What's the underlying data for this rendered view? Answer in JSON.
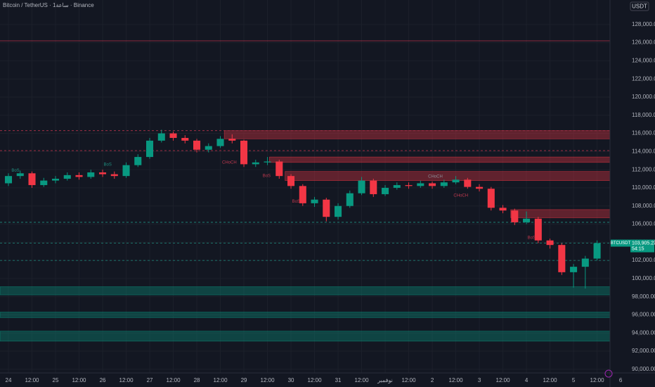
{
  "chart_data": {
    "type": "candlestick",
    "title": "Bitcoin / TetherUS · 1ساعة · Binance",
    "currency": "USDT",
    "symbol": "BTCUSDT",
    "last_price_label": "103,905.23",
    "countdown": "54:15",
    "up_color": "#089981",
    "down_color": "#f23645",
    "x": [
      0,
      6,
      12,
      18,
      24,
      30,
      36,
      42,
      48,
      54,
      60,
      66,
      72,
      78,
      84,
      90,
      96,
      102,
      108,
      114,
      120,
      126,
      132,
      138,
      144,
      150,
      156,
      162,
      168,
      174,
      180,
      186,
      192,
      198,
      204,
      210,
      216,
      222,
      228,
      234,
      240,
      246,
      252,
      258,
      264,
      270,
      276,
      282,
      288,
      294,
      300
    ],
    "open": [
      110500,
      111300,
      111600,
      110300,
      110800,
      111000,
      111400,
      111200,
      111700,
      111500,
      111300,
      112500,
      113400,
      115200,
      116000,
      115500,
      115200,
      114200,
      114600,
      115400,
      115200,
      112600,
      112800,
      112900,
      111300,
      110200,
      108300,
      108700,
      106800,
      108000,
      109400,
      110800,
      109300,
      110000,
      110300,
      110200,
      110500,
      110200,
      110600,
      110900,
      110100,
      109900,
      107800,
      107500,
      106200,
      106600,
      104200,
      103700,
      100700,
      101300,
      102200
    ],
    "high": [
      111600,
      111900,
      111800,
      111100,
      111300,
      111700,
      111700,
      112000,
      112000,
      111800,
      112800,
      113700,
      115500,
      116400,
      116200,
      115800,
      115400,
      114900,
      115700,
      115900,
      115300,
      113100,
      113400,
      113100,
      111500,
      110400,
      109000,
      108900,
      108300,
      109700,
      111200,
      111000,
      110300,
      110600,
      110600,
      110800,
      110700,
      110900,
      111300,
      111100,
      110400,
      110100,
      108100,
      107700,
      107400,
      106800,
      104400,
      103900,
      101600,
      102500,
      104200
    ],
    "low": [
      110200,
      111000,
      110000,
      110100,
      110500,
      110800,
      110900,
      111000,
      111200,
      111000,
      111100,
      112300,
      113200,
      115000,
      115200,
      114900,
      113900,
      113900,
      114400,
      114900,
      112300,
      112300,
      112500,
      111000,
      109900,
      108000,
      107900,
      106300,
      106500,
      107800,
      109200,
      109000,
      109100,
      109800,
      109900,
      110000,
      109900,
      110000,
      110400,
      109900,
      109600,
      107500,
      107200,
      105900,
      106000,
      103900,
      103300,
      100400,
      99000,
      98900,
      102000
    ],
    "close": [
      111300,
      111600,
      110300,
      110800,
      111000,
      111400,
      111200,
      111700,
      111500,
      111300,
      112500,
      113400,
      115200,
      116000,
      115500,
      115200,
      114200,
      114600,
      115400,
      115200,
      112600,
      112800,
      112900,
      111300,
      110200,
      108300,
      108700,
      106800,
      108000,
      109400,
      110800,
      109300,
      110000,
      110300,
      110200,
      110500,
      110200,
      110600,
      110900,
      110100,
      109900,
      107800,
      107500,
      106200,
      106600,
      104200,
      103700,
      100700,
      101300,
      102200,
      103905.23
    ],
    "xlim": [
      -4.3,
      306.6
    ],
    "ylim": [
      89600,
      130700
    ],
    "xticks": [
      {
        "value": 0,
        "label": "24"
      },
      {
        "value": 12,
        "label": "12:00"
      },
      {
        "value": 24,
        "label": "25"
      },
      {
        "value": 36,
        "label": "12:00"
      },
      {
        "value": 48,
        "label": "26"
      },
      {
        "value": 60,
        "label": "12:00"
      },
      {
        "value": 72,
        "label": "27"
      },
      {
        "value": 84,
        "label": "12:00"
      },
      {
        "value": 96,
        "label": "28"
      },
      {
        "value": 108,
        "label": "12:00"
      },
      {
        "value": 120,
        "label": "29"
      },
      {
        "value": 132,
        "label": "12:00"
      },
      {
        "value": 144,
        "label": "30"
      },
      {
        "value": 156,
        "label": "12:00"
      },
      {
        "value": 168,
        "label": "31"
      },
      {
        "value": 180,
        "label": "12:00"
      },
      {
        "value": 192,
        "label": "نوفمبر"
      },
      {
        "value": 204,
        "label": "12:00"
      },
      {
        "value": 216,
        "label": "2"
      },
      {
        "value": 228,
        "label": "12:00"
      },
      {
        "value": 240,
        "label": "3"
      },
      {
        "value": 252,
        "label": "12:00"
      },
      {
        "value": 264,
        "label": "4"
      },
      {
        "value": 276,
        "label": "12:00"
      },
      {
        "value": 288,
        "label": "5"
      },
      {
        "value": 300,
        "label": "12:00"
      },
      {
        "value": 312,
        "label": "6"
      }
    ],
    "yticks": [
      {
        "value": 90000,
        "label": "90,000.00"
      },
      {
        "value": 92000,
        "label": "92,000.00"
      },
      {
        "value": 94000,
        "label": "94,000.00"
      },
      {
        "value": 96000,
        "label": "96,000.00"
      },
      {
        "value": 98000,
        "label": "98,000.00"
      },
      {
        "value": 100000,
        "label": "100,000.00"
      },
      {
        "value": 102000,
        "label": "102,000.00"
      },
      {
        "value": 104000,
        "label": "104,000.00"
      },
      {
        "value": 106000,
        "label": "106,000.00"
      },
      {
        "value": 108000,
        "label": "108,000.00"
      },
      {
        "value": 110000,
        "label": "110,000.00"
      },
      {
        "value": 112000,
        "label": "112,000.00"
      },
      {
        "value": 114000,
        "label": "114,000.00"
      },
      {
        "value": 116000,
        "label": "116,000.00"
      },
      {
        "value": 118000,
        "label": "118,000.00"
      },
      {
        "value": 120000,
        "label": "120,000.00"
      },
      {
        "value": 122000,
        "label": "122,000.00"
      },
      {
        "value": 124000,
        "label": "124,000.00"
      },
      {
        "value": 126000,
        "label": "126,000.00"
      },
      {
        "value": 128000,
        "label": "128,000.00"
      }
    ],
    "grid": true,
    "levels": [
      {
        "value": 126200,
        "color": "#b2324a",
        "dashed": false
      },
      {
        "value": 116300,
        "color": "#b2324a",
        "dashed": true
      },
      {
        "value": 114100,
        "color": "#b2324a",
        "dashed": true
      },
      {
        "value": 106200,
        "color": "#1f8f80",
        "dashed": true
      },
      {
        "value": 103905.23,
        "color": "#1f8f80",
        "dashed": true
      },
      {
        "value": 102000,
        "color": "#1f8f80",
        "dashed": true
      }
    ],
    "zones": [
      {
        "x0": 110,
        "top": 116300,
        "bottom": 115400,
        "color": "#f23645"
      },
      {
        "x0": 133,
        "top": 113400,
        "bottom": 112800,
        "color": "#f23645"
      },
      {
        "x0": 141,
        "top": 111800,
        "bottom": 110800,
        "color": "#f23645"
      },
      {
        "x0": 256,
        "top": 107600,
        "bottom": 106700,
        "color": "#f23645"
      },
      {
        "x0": -4.3,
        "top": 99100,
        "bottom": 98200,
        "color": "#089981"
      },
      {
        "x0": -4.3,
        "top": 96300,
        "bottom": 95700,
        "color": "#089981"
      },
      {
        "x0": -4.3,
        "top": 94200,
        "bottom": 93100,
        "color": "#089981"
      }
    ],
    "annotations": [
      {
        "text": "BoS",
        "x": 0,
        "y": 111900,
        "color": "#1f8f80"
      },
      {
        "text": "BoS",
        "x": 47,
        "y": 112550,
        "color": "#1f8f80"
      },
      {
        "text": "CHoCH",
        "x": 109,
        "y": 112800,
        "color": "#c0394f"
      },
      {
        "text": "BoS",
        "x": 128,
        "y": 111300,
        "color": "#c0394f"
      },
      {
        "text": "BoS",
        "x": 143,
        "y": 108500,
        "color": "#c0394f"
      },
      {
        "text": "CHoCH",
        "x": 214,
        "y": 111250,
        "color": "#8a8f98"
      },
      {
        "text": "CHoCH",
        "x": 227,
        "y": 109150,
        "color": "#c0394f"
      },
      {
        "text": "BoS",
        "x": 263,
        "y": 104500,
        "color": "#c0394f"
      }
    ]
  }
}
